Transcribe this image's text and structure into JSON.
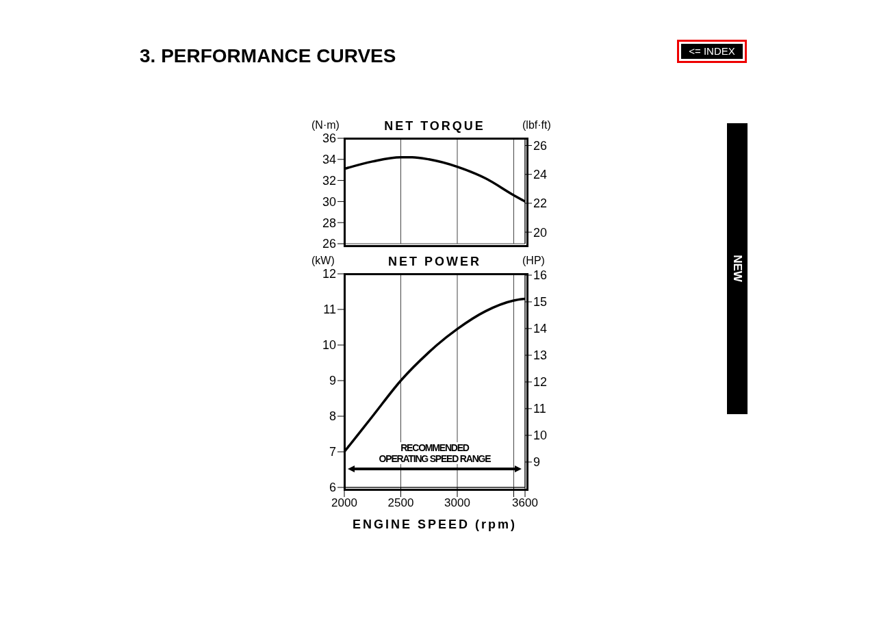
{
  "chart_data": [
    {
      "type": "line",
      "title": "NET TORQUE",
      "ylabel": "(N·m)",
      "y2label": "(lbf·ft)",
      "x": [
        2000,
        2250,
        2500,
        2600,
        2750,
        3000,
        3250,
        3500,
        3600
      ],
      "series": [
        {
          "color": "#000000",
          "values": [
            33.1,
            33.8,
            34.2,
            34.2,
            34.0,
            33.3,
            32.2,
            30.6,
            30.0
          ]
        }
      ],
      "xlim": [
        2000,
        3600
      ],
      "xticks": [
        2000,
        2500,
        3000,
        {
          "value": 3500,
          "label": null
        },
        3600
      ],
      "ylim": [
        26,
        36
      ],
      "yticks": [
        26,
        28,
        30,
        32,
        34,
        36
      ],
      "y2lim": [
        19.2,
        26.5
      ],
      "y2ticks": [
        20,
        22,
        24,
        26
      ],
      "grid": true,
      "tick_labels": "y",
      "annotations": [
        "3. PERFORMANCE CURVES",
        "<= INDEX",
        "NEW"
      ]
    },
    {
      "type": "line",
      "title": "NET POWER",
      "ylabel": "(kW)",
      "y2label": "(HP)",
      "xlabel": "ENGINE SPEED (rpm)",
      "x": [
        2000,
        2250,
        2500,
        2750,
        2820,
        3000,
        3250,
        3500,
        3600
      ],
      "series": [
        {
          "color": "#000000",
          "values": [
            7.0,
            8.0,
            9.0,
            9.8,
            10.0,
            10.45,
            10.95,
            11.25,
            11.3
          ]
        }
      ],
      "xlim": [
        2000,
        3600
      ],
      "xticks": [
        2000,
        2500,
        3000,
        {
          "value": 3500,
          "label": null
        },
        3600
      ],
      "ylim": [
        6,
        12
      ],
      "yticks": [
        6,
        7,
        8,
        9,
        10,
        11,
        12
      ],
      "y2lim": [
        8.05,
        16.05
      ],
      "y2ticks": [
        9,
        10,
        11,
        12,
        13,
        14,
        15,
        16
      ],
      "grid": true,
      "annotations": [
        "RECOMMENDED\nOPERATING SPEED RANGE"
      ]
    }
  ]
}
